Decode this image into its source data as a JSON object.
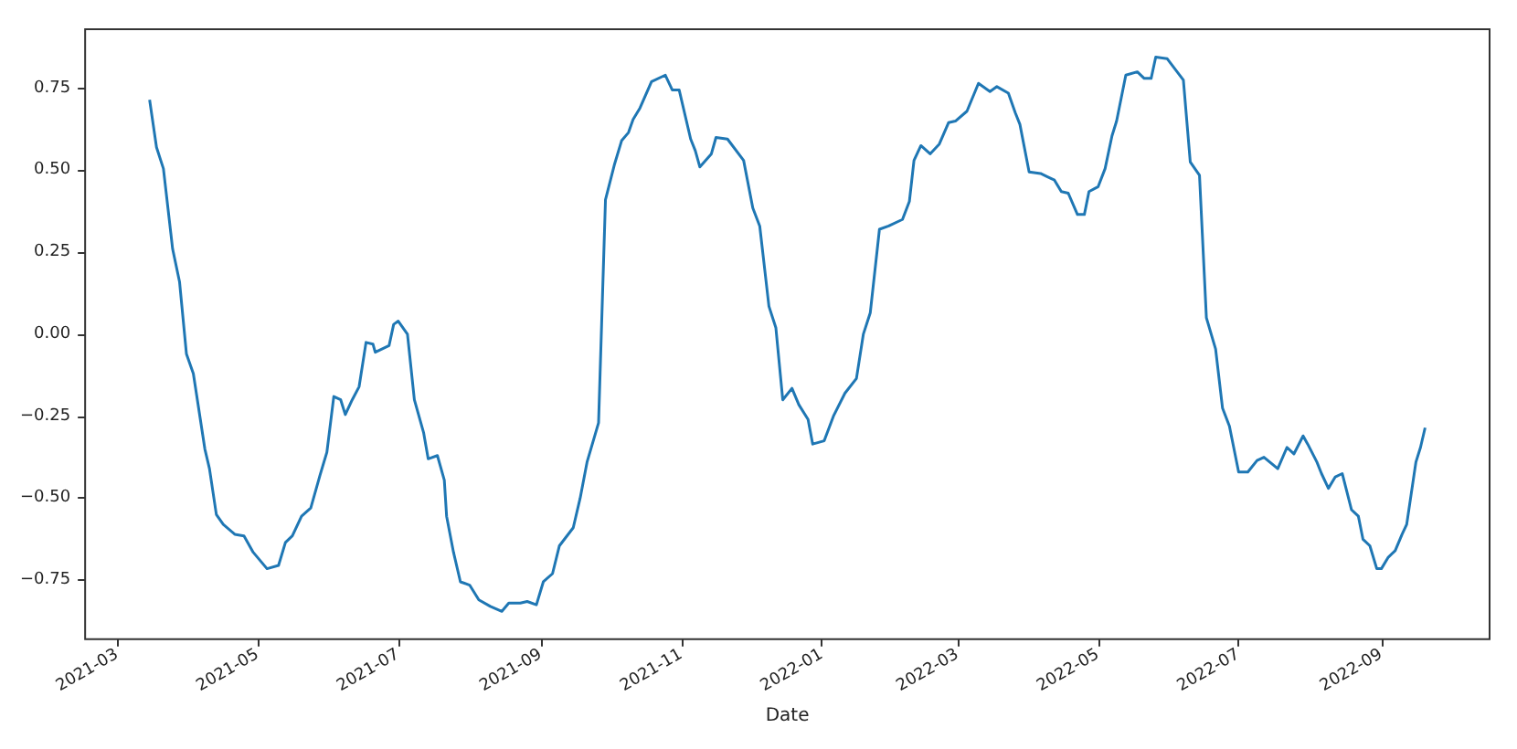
{
  "chart_data": {
    "type": "line",
    "xlabel": "Date",
    "x": [
      "2021-03-15",
      "2021-03-18",
      "2021-03-21",
      "2021-03-25",
      "2021-03-28",
      "2021-03-31",
      "2021-04-03",
      "2021-04-08",
      "2021-04-10",
      "2021-04-13",
      "2021-04-16",
      "2021-04-21",
      "2021-04-25",
      "2021-04-29",
      "2021-05-05",
      "2021-05-10",
      "2021-05-13",
      "2021-05-16",
      "2021-05-20",
      "2021-05-24",
      "2021-05-28",
      "2021-05-31",
      "2021-06-03",
      "2021-06-06",
      "2021-06-08",
      "2021-06-11",
      "2021-06-14",
      "2021-06-17",
      "2021-06-20",
      "2021-06-21",
      "2021-06-27",
      "2021-06-29",
      "2021-07-01",
      "2021-07-05",
      "2021-07-08",
      "2021-07-12",
      "2021-07-14",
      "2021-07-18",
      "2021-07-21",
      "2021-07-22",
      "2021-07-25",
      "2021-07-28",
      "2021-08-01",
      "2021-08-05",
      "2021-08-10",
      "2021-08-15",
      "2021-08-18",
      "2021-08-23",
      "2021-08-26",
      "2021-08-30",
      "2021-09-02",
      "2021-09-06",
      "2021-09-09",
      "2021-09-15",
      "2021-09-18",
      "2021-09-21",
      "2021-09-26",
      "2021-09-29",
      "2021-10-03",
      "2021-10-06",
      "2021-10-09",
      "2021-10-11",
      "2021-10-14",
      "2021-10-19",
      "2021-10-25",
      "2021-10-28",
      "2021-10-31",
      "2021-11-05",
      "2021-11-07",
      "2021-11-09",
      "2021-11-14",
      "2021-11-16",
      "2021-11-21",
      "2021-11-28",
      "2021-12-02",
      "2021-12-05",
      "2021-12-09",
      "2021-12-12",
      "2021-12-15",
      "2021-12-19",
      "2021-12-22",
      "2021-12-26",
      "2021-12-28",
      "2022-01-02",
      "2022-01-06",
      "2022-01-11",
      "2022-01-16",
      "2022-01-19",
      "2022-01-22",
      "2022-01-26",
      "2022-01-30",
      "2022-02-05",
      "2022-02-08",
      "2022-02-10",
      "2022-02-13",
      "2022-02-17",
      "2022-02-21",
      "2022-02-25",
      "2022-02-28",
      "2022-03-05",
      "2022-03-10",
      "2022-03-15",
      "2022-03-18",
      "2022-03-23",
      "2022-03-26",
      "2022-03-28",
      "2022-04-01",
      "2022-04-06",
      "2022-04-09",
      "2022-04-12",
      "2022-04-15",
      "2022-04-18",
      "2022-04-22",
      "2022-04-25",
      "2022-04-27",
      "2022-05-01",
      "2022-05-04",
      "2022-05-07",
      "2022-05-09",
      "2022-05-13",
      "2022-05-18",
      "2022-05-21",
      "2022-05-24",
      "2022-05-26",
      "2022-05-31",
      "2022-06-07",
      "2022-06-10",
      "2022-06-14",
      "2022-06-17",
      "2022-06-21",
      "2022-06-24",
      "2022-06-27",
      "2022-07-01",
      "2022-07-05",
      "2022-07-09",
      "2022-07-12",
      "2022-07-18",
      "2022-07-22",
      "2022-07-25",
      "2022-07-29",
      "2022-07-31",
      "2022-08-04",
      "2022-08-06",
      "2022-08-09",
      "2022-08-12",
      "2022-08-15",
      "2022-08-19",
      "2022-08-22",
      "2022-08-24",
      "2022-08-27",
      "2022-08-30",
      "2022-09-01",
      "2022-09-04",
      "2022-09-07",
      "2022-09-10",
      "2022-09-12",
      "2022-09-16",
      "2022-09-18",
      "2022-09-20"
    ],
    "series": [
      {
        "color": "#1f77b4",
        "values": [
          0.715,
          0.57,
          0.505,
          0.26,
          0.16,
          -0.06,
          -0.12,
          -0.35,
          -0.41,
          -0.55,
          -0.58,
          -0.61,
          -0.615,
          -0.665,
          -0.715,
          -0.705,
          -0.635,
          -0.615,
          -0.555,
          -0.53,
          -0.43,
          -0.36,
          -0.19,
          -0.2,
          -0.245,
          -0.2,
          -0.16,
          -0.025,
          -0.03,
          -0.055,
          -0.035,
          0.03,
          0.04,
          0.0,
          -0.2,
          -0.3,
          -0.38,
          -0.37,
          -0.445,
          -0.555,
          -0.665,
          -0.755,
          -0.765,
          -0.81,
          -0.83,
          -0.845,
          -0.82,
          -0.82,
          -0.815,
          -0.825,
          -0.755,
          -0.73,
          -0.645,
          -0.59,
          -0.5,
          -0.39,
          -0.27,
          0.41,
          0.52,
          0.59,
          0.615,
          0.655,
          0.69,
          0.77,
          0.79,
          0.745,
          0.745,
          0.595,
          0.56,
          0.51,
          0.55,
          0.6,
          0.595,
          0.53,
          0.385,
          0.33,
          0.085,
          0.02,
          -0.2,
          -0.165,
          -0.215,
          -0.26,
          -0.335,
          -0.325,
          -0.25,
          -0.18,
          -0.135,
          0.0,
          0.065,
          0.32,
          0.33,
          0.35,
          0.405,
          0.53,
          0.575,
          0.55,
          0.58,
          0.645,
          0.65,
          0.68,
          0.765,
          0.74,
          0.755,
          0.735,
          0.675,
          0.64,
          0.495,
          0.49,
          0.48,
          0.47,
          0.435,
          0.43,
          0.365,
          0.365,
          0.435,
          0.45,
          0.505,
          0.605,
          0.65,
          0.79,
          0.8,
          0.78,
          0.78,
          0.845,
          0.84,
          0.775,
          0.525,
          0.485,
          0.05,
          -0.045,
          -0.225,
          -0.28,
          -0.42,
          -0.42,
          -0.385,
          -0.375,
          -0.41,
          -0.345,
          -0.365,
          -0.31,
          -0.335,
          -0.39,
          -0.425,
          -0.47,
          -0.435,
          -0.425,
          -0.535,
          -0.555,
          -0.625,
          -0.645,
          -0.715,
          -0.715,
          -0.68,
          -0.66,
          -0.61,
          -0.58,
          -0.39,
          -0.345,
          -0.285
        ]
      }
    ],
    "xlim": [
      "2021-02-15",
      "2022-10-18"
    ],
    "xticks": [
      "2021-03",
      "2021-05",
      "2021-07",
      "2021-09",
      "2021-11",
      "2022-01",
      "2022-03",
      "2022-05",
      "2022-07",
      "2022-09"
    ],
    "ylim": [
      -0.93,
      0.93
    ],
    "yticks": [
      {
        "value": -0.75,
        "label": "−0.75"
      },
      {
        "value": -0.5,
        "label": "−0.50"
      },
      {
        "value": -0.25,
        "label": "−0.25"
      },
      {
        "value": 0,
        "label": "0.00"
      },
      {
        "value": 0.25,
        "label": "0.25"
      },
      {
        "value": 0.5,
        "label": "0.50"
      },
      {
        "value": 0.75,
        "label": "0.75"
      }
    ],
    "grid": false,
    "marker": "none",
    "line_style": "solid"
  }
}
